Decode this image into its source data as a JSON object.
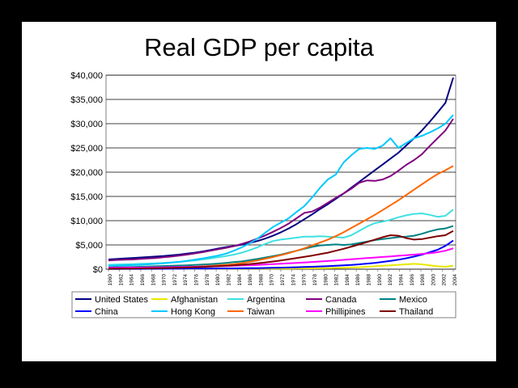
{
  "title": "Real GDP per capita",
  "chart_data": {
    "type": "line",
    "title": "Real GDP per capita",
    "xlabel": "",
    "ylabel": "",
    "x_ticks": [
      "1960",
      "1962",
      "1964",
      "1966",
      "1968",
      "1970",
      "1972",
      "1974",
      "1976",
      "1978",
      "1980",
      "1982",
      "1984",
      "1986",
      "1988",
      "1970",
      "1972",
      "1974",
      "1976",
      "1978",
      "1980",
      "1982",
      "1984",
      "1986",
      "1988",
      "1990",
      "1992",
      "1994",
      "1996",
      "1998",
      "2000",
      "2002",
      "2004"
    ],
    "y_ticks": [
      "$0",
      "$5,000",
      "$10,000",
      "$15,000",
      "$20,000",
      "$25,000",
      "$30,000",
      "$35,000",
      "$40,000"
    ],
    "ylim": [
      0,
      40000
    ],
    "grid": "horizontal",
    "legend_position": "bottom",
    "x_index": [
      0,
      1,
      2,
      3,
      4,
      5,
      6,
      7,
      8,
      9,
      10,
      11,
      12,
      13,
      14,
      15,
      16,
      17,
      18,
      19,
      20,
      21,
      22,
      23,
      24,
      25,
      26,
      27,
      28,
      29,
      30,
      31,
      32,
      33,
      34,
      35,
      36,
      37,
      38,
      39,
      40,
      41,
      42,
      43,
      44
    ],
    "series": [
      {
        "name": "United States",
        "color": "#000080",
        "values": [
          2000,
          2100,
          2200,
          2300,
          2400,
          2500,
          2600,
          2700,
          2850,
          3000,
          3200,
          3400,
          3650,
          3950,
          4250,
          4550,
          4800,
          5050,
          5400,
          5800,
          6300,
          6900,
          7600,
          8400,
          9300,
          10300,
          11300,
          12400,
          13400,
          14500,
          15600,
          16800,
          18000,
          19200,
          20400,
          21600,
          22800,
          24000,
          25500,
          27000,
          28600,
          30400,
          32300,
          34300,
          39500
        ]
      },
      {
        "name": "Afghanistan",
        "color": "#e8e800",
        "values": [
          50,
          50,
          60,
          60,
          60,
          70,
          70,
          80,
          80,
          80,
          90,
          90,
          100,
          100,
          100,
          110,
          110,
          120,
          120,
          130,
          130,
          140,
          150,
          150,
          160,
          170,
          180,
          190,
          200,
          250,
          300,
          350,
          400,
          500,
          600,
          700,
          800,
          900,
          1000,
          1100,
          1000,
          800,
          600,
          500,
          700
        ]
      },
      {
        "name": "Argentina",
        "color": "#40e0e0",
        "values": [
          900,
          950,
          1000,
          1050,
          1100,
          1150,
          1200,
          1300,
          1400,
          1500,
          1650,
          1800,
          2000,
          2200,
          2450,
          2700,
          3000,
          3400,
          3900,
          4500,
          5200,
          5800,
          6100,
          6300,
          6500,
          6700,
          6700,
          6800,
          6700,
          6600,
          6500,
          7000,
          7900,
          8800,
          9500,
          9800,
          10200,
          10700,
          11100,
          11400,
          11500,
          11200,
          10800,
          11000,
          12300
        ]
      },
      {
        "name": "Canada",
        "color": "#800080",
        "values": [
          1800,
          1900,
          1950,
          2000,
          2100,
          2200,
          2300,
          2450,
          2600,
          2800,
          3000,
          3250,
          3500,
          3800,
          4100,
          4400,
          4750,
          5200,
          5700,
          6300,
          6950,
          7700,
          8500,
          9400,
          10500,
          11600,
          11900,
          12700,
          13700,
          14700,
          15600,
          16600,
          17800,
          18300,
          18200,
          18500,
          19200,
          20300,
          21500,
          22500,
          23700,
          25400,
          27000,
          28600,
          31000
        ]
      },
      {
        "name": "Mexico",
        "color": "#008080",
        "values": [
          400,
          420,
          440,
          460,
          500,
          550,
          600,
          650,
          700,
          750,
          800,
          870,
          950,
          1050,
          1150,
          1300,
          1450,
          1600,
          1850,
          2100,
          2400,
          2700,
          3000,
          3400,
          3800,
          4200,
          4600,
          4900,
          5000,
          5100,
          5000,
          5100,
          5400,
          5700,
          6000,
          6200,
          6400,
          6600,
          6700,
          6900,
          7300,
          7800,
          8200,
          8400,
          8900
        ]
      },
      {
        "name": "China",
        "color": "#0000ff",
        "values": [
          50,
          50,
          60,
          70,
          70,
          80,
          90,
          90,
          100,
          100,
          110,
          120,
          130,
          140,
          150,
          160,
          170,
          180,
          200,
          220,
          250,
          280,
          310,
          350,
          400,
          450,
          500,
          560,
          620,
          700,
          780,
          880,
          1000,
          1150,
          1300,
          1500,
          1700,
          1950,
          2250,
          2600,
          3000,
          3500,
          4000,
          4800,
          5900
        ]
      },
      {
        "name": "Hong Kong",
        "color": "#00c8ff",
        "values": [
          700,
          750,
          800,
          850,
          900,
          1000,
          1100,
          1200,
          1350,
          1500,
          1700,
          1950,
          2200,
          2500,
          2800,
          3200,
          3800,
          4500,
          5300,
          6300,
          7500,
          8700,
          9600,
          10500,
          11800,
          13000,
          14800,
          16800,
          18500,
          19500,
          22000,
          23500,
          24800,
          25000,
          24800,
          25500,
          27000,
          25000,
          26000,
          27000,
          27500,
          28200,
          29000,
          30000,
          31800
        ]
      },
      {
        "name": "Taiwan",
        "color": "#ff6600",
        "values": [
          150,
          160,
          180,
          200,
          220,
          240,
          270,
          300,
          340,
          380,
          440,
          500,
          580,
          670,
          780,
          900,
          1050,
          1250,
          1500,
          1800,
          2150,
          2500,
          2900,
          3300,
          3800,
          4300,
          4900,
          5500,
          6100,
          6800,
          7600,
          8500,
          9400,
          10300,
          11200,
          12200,
          13200,
          14200,
          15300,
          16400,
          17500,
          18600,
          19600,
          20400,
          21300
        ]
      },
      {
        "name": "Phillipines",
        "color": "#ff00ff",
        "values": [
          300,
          310,
          320,
          330,
          340,
          350,
          370,
          390,
          410,
          430,
          460,
          490,
          520,
          560,
          600,
          650,
          700,
          760,
          820,
          890,
          960,
          1040,
          1120,
          1200,
          1290,
          1380,
          1480,
          1580,
          1690,
          1800,
          1920,
          2040,
          2160,
          2280,
          2400,
          2520,
          2640,
          2760,
          2880,
          3000,
          3150,
          3300,
          3500,
          3800,
          4300
        ]
      },
      {
        "name": "Thailand",
        "color": "#800000",
        "values": [
          100,
          110,
          120,
          140,
          160,
          180,
          200,
          230,
          260,
          300,
          350,
          400,
          460,
          530,
          610,
          700,
          800,
          920,
          1050,
          1200,
          1380,
          1580,
          1800,
          2050,
          2300,
          2550,
          2800,
          3100,
          3400,
          3800,
          4200,
          4650,
          5100,
          5600,
          6100,
          6600,
          7000,
          6900,
          6400,
          6100,
          6200,
          6500,
          6800,
          7000,
          7900
        ]
      }
    ]
  }
}
